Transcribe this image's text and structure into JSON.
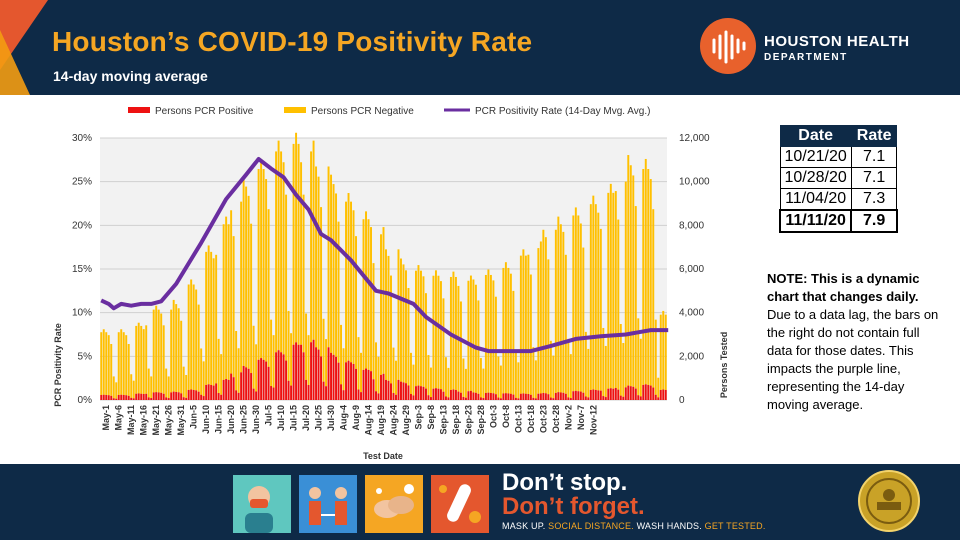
{
  "header": {
    "title": "Houston’s COVID-19 Positivity Rate",
    "subtitle": "14-day moving average",
    "org_name": "HOUSTON HEALTH",
    "org_dept": "DEPARTMENT"
  },
  "colors": {
    "navy": "#0e2a47",
    "orange": "#f5a623",
    "red_orange": "#e4572e",
    "positive": "#ee1111",
    "negative": "#ffc000",
    "rate_line": "#6a2ea0"
  },
  "chart_data": {
    "type": "bar+line",
    "legend": [
      "Persons PCR Positive",
      "Persons PCR Negative",
      "PCR Positivity Rate (14-Day Mvg. Avg.)"
    ],
    "legend_position": "top",
    "xlabel": "Test Date",
    "ylabel_left": "PCR Positivity Rate",
    "ylabel_right": "Persons Tested",
    "ylim_left": [
      0,
      30
    ],
    "ylim_right": [
      0,
      12000
    ],
    "yticks_left": [
      "0%",
      "5%",
      "10%",
      "15%",
      "20%",
      "25%",
      "30%"
    ],
    "yticks_right": [
      "0",
      "2,000",
      "4,000",
      "6,000",
      "8,000",
      "10,000",
      "12,000"
    ],
    "x_tick_labels": [
      "May-1",
      "May-6",
      "May-11",
      "May-16",
      "May-21",
      "May-26",
      "May-31",
      "Jun-5",
      "Jun-10",
      "Jun-15",
      "Jun-20",
      "Jun-25",
      "Jun-30",
      "Jul-5",
      "Jul-10",
      "Jul-15",
      "Jul-20",
      "Jul-25",
      "Jul-30",
      "Aug-4",
      "Aug-9",
      "Aug-14",
      "Aug-19",
      "Aug-24",
      "Aug-29",
      "Sep-3",
      "Sep-8",
      "Sep-13",
      "Sep-18",
      "Sep-23",
      "Sep-28",
      "Oct-3",
      "Oct-8",
      "Oct-13",
      "Oct-18",
      "Oct-23",
      "Oct-28",
      "Nov-2",
      "Nov-7",
      "Nov-12"
    ],
    "series_stacked_weekly": {
      "positive_avg": [
        200,
        200,
        250,
        300,
        300,
        320,
        400,
        600,
        800,
        1100,
        1300,
        1600,
        1900,
        2200,
        2300,
        2100,
        1800,
        1500,
        1200,
        1000,
        800,
        700,
        550,
        450,
        400,
        350,
        300,
        280,
        260,
        250,
        250,
        280,
        300,
        350,
        400,
        450,
        500,
        550,
        600,
        400
      ],
      "negative_avg": [
        2500,
        2500,
        2700,
        3300,
        3300,
        3500,
        4200,
        5300,
        6200,
        6800,
        7200,
        7600,
        8000,
        8000,
        7600,
        7200,
        6800,
        6400,
        6000,
        5600,
        5200,
        4700,
        4600,
        4500,
        4500,
        4400,
        4500,
        4700,
        5000,
        5500,
        5800,
        6500,
        6700,
        7000,
        7400,
        7800,
        8200,
        8800,
        8600,
        3000
      ]
    },
    "rate_line_points": [
      [
        0,
        11.4
      ],
      [
        3,
        11.0
      ],
      [
        5,
        10.5
      ],
      [
        8,
        11.0
      ],
      [
        12,
        10.8
      ],
      [
        16,
        11.0
      ],
      [
        20,
        11.0
      ],
      [
        24,
        11.3
      ],
      [
        30,
        13.3
      ],
      [
        40,
        18.0
      ],
      [
        50,
        23.0
      ],
      [
        58,
        25.8
      ],
      [
        63,
        27.6
      ],
      [
        68,
        26.5
      ],
      [
        73,
        25.5
      ],
      [
        78,
        23.5
      ],
      [
        83,
        21.8
      ],
      [
        88,
        19.0
      ],
      [
        92,
        18.3
      ],
      [
        100,
        16.0
      ],
      [
        110,
        12.5
      ],
      [
        115,
        12.2
      ],
      [
        125,
        11.0
      ],
      [
        130,
        9.5
      ],
      [
        140,
        7.5
      ],
      [
        150,
        6.0
      ],
      [
        155,
        5.6
      ],
      [
        165,
        5.6
      ],
      [
        172,
        5.6
      ],
      [
        180,
        6.2
      ],
      [
        190,
        7.0
      ],
      [
        200,
        7.3
      ],
      [
        210,
        7.5
      ],
      [
        220,
        8.0
      ],
      [
        227,
        8.0
      ]
    ],
    "total_days": 227
  },
  "rate_table": {
    "headers": [
      "Date",
      "Rate"
    ],
    "rows": [
      {
        "date": "10/21/20",
        "rate": "7.1"
      },
      {
        "date": "10/28/20",
        "rate": "7.1"
      },
      {
        "date": "11/04/20",
        "rate": "7.3"
      },
      {
        "date": "11/11/20",
        "rate": "7.9"
      }
    ]
  },
  "note": {
    "bold": "NOTE: This is a dynamic chart that changes daily.",
    "text": " Due to a data lag, the bars on the right do not contain full data for those dates. This impacts the purple line, representing the 14-day moving average."
  },
  "footer": {
    "line1": "Don’t stop.",
    "line2": "Don’t forget.",
    "slogan_a": "MASK UP.",
    "slogan_b": " SOCIAL DISTANCE.",
    "slogan_c": " WASH HANDS.",
    "slogan_d": " GET TESTED.",
    "tiles": [
      "mask-tile",
      "distance-tile",
      "wash-hands-tile",
      "test-tube-tile"
    ]
  }
}
